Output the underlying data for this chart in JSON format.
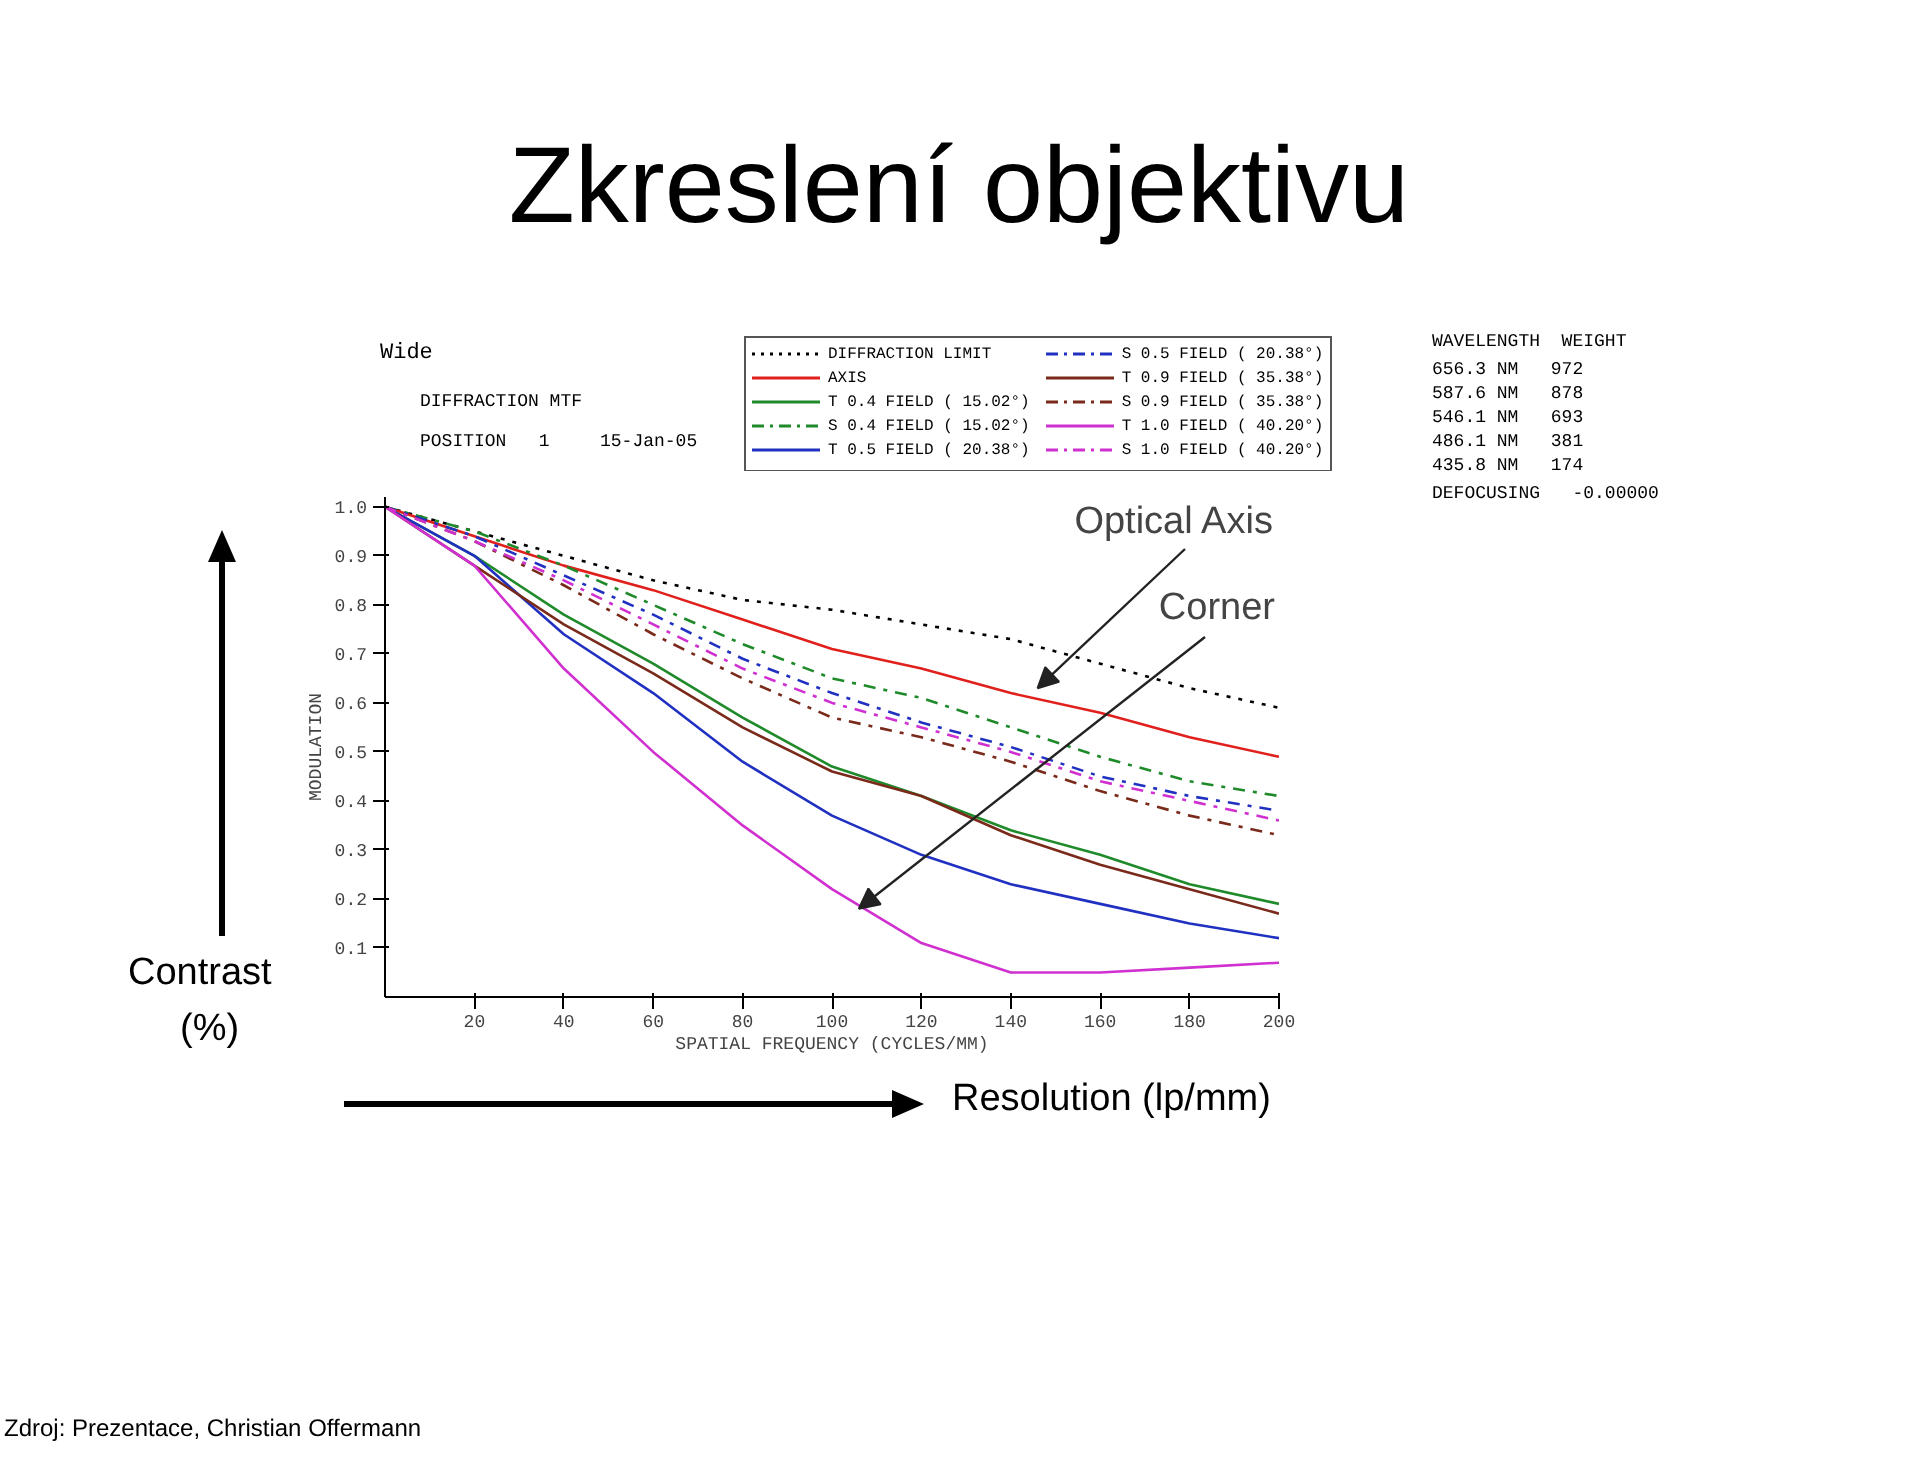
{
  "chart_data": {
    "type": "line",
    "title": "Zkreslení objektivu",
    "xlabel": "SPATIAL FREQUENCY (CYCLES/MM)",
    "ylabel": "MODULATION",
    "x": [
      0,
      20,
      40,
      60,
      80,
      100,
      120,
      140,
      160,
      180,
      200
    ],
    "xlim": [
      0,
      200
    ],
    "xticks": [
      20,
      40,
      60,
      80,
      100,
      120,
      140,
      160,
      180,
      200
    ],
    "ylim": [
      0,
      1.02
    ],
    "yticks": [
      0.1,
      0.2,
      0.3,
      0.4,
      0.5,
      0.6,
      0.7,
      0.8,
      0.9,
      {
        "value": 1,
        "label": "1.0"
      }
    ],
    "grid": false,
    "legend": "top",
    "marker": "none",
    "series": [
      {
        "name": "DIFFRACTION LIMIT",
        "color": "#000000",
        "line_style": "dotted",
        "values": [
          1.0,
          0.95,
          0.9,
          0.85,
          0.81,
          0.79,
          0.76,
          0.73,
          0.68,
          0.63,
          0.59
        ]
      },
      {
        "name": "AXIS",
        "color": "#e0201c",
        "line_style": "solid",
        "values": [
          1.0,
          0.94,
          0.88,
          0.83,
          0.77,
          0.71,
          0.67,
          0.62,
          0.58,
          0.53,
          0.49
        ]
      },
      {
        "name": "T 0.4 FIELD ( 15.02°)",
        "color": "#1f8a2a",
        "line_style": "solid",
        "values": [
          1.0,
          0.9,
          0.78,
          0.68,
          0.57,
          0.47,
          0.41,
          0.34,
          0.29,
          0.23,
          0.19
        ]
      },
      {
        "name": "S 0.4 FIELD ( 15.02°)",
        "color": "#1f8a2a",
        "line_style": "dashdot",
        "values": [
          1.0,
          0.95,
          0.88,
          0.8,
          0.72,
          0.65,
          0.61,
          0.55,
          0.49,
          0.44,
          0.41
        ]
      },
      {
        "name": "T 0.5 FIELD ( 20.38°)",
        "color": "#2030c0",
        "line_style": "solid",
        "values": [
          1.0,
          0.9,
          0.74,
          0.62,
          0.48,
          0.37,
          0.29,
          0.23,
          0.19,
          0.15,
          0.12
        ]
      },
      {
        "name": "S 0.5 FIELD ( 20.38°)",
        "color": "#2030c0",
        "line_style": "dashdot",
        "values": [
          1.0,
          0.94,
          0.86,
          0.78,
          0.69,
          0.62,
          0.56,
          0.51,
          0.45,
          0.41,
          0.38
        ]
      },
      {
        "name": "T 0.9 FIELD ( 35.38°)",
        "color": "#7a2a1a",
        "line_style": "solid",
        "values": [
          1.0,
          0.88,
          0.76,
          0.66,
          0.55,
          0.46,
          0.41,
          0.33,
          0.27,
          0.22,
          0.17
        ]
      },
      {
        "name": "S 0.9 FIELD ( 35.38°)",
        "color": "#7a2a1a",
        "line_style": "dashdot",
        "values": [
          1.0,
          0.93,
          0.84,
          0.74,
          0.65,
          0.57,
          0.53,
          0.48,
          0.42,
          0.37,
          0.33
        ]
      },
      {
        "name": "T 1.0 FIELD ( 40.20°)",
        "color": "#d030d0",
        "line_style": "solid",
        "values": [
          1.0,
          0.88,
          0.67,
          0.5,
          0.35,
          0.22,
          0.11,
          0.05,
          0.05,
          0.06,
          0.07
        ]
      },
      {
        "name": "S 1.0 FIELD ( 40.20°)",
        "color": "#d030d0",
        "line_style": "dashdot",
        "values": [
          1.0,
          0.93,
          0.85,
          0.76,
          0.67,
          0.6,
          0.55,
          0.5,
          0.44,
          0.4,
          0.36
        ]
      }
    ],
    "annotations": [
      "Wide",
      "DIFFRACTION MTF",
      "POSITION   1",
      "15-Jan-05",
      "WAVELENGTH  WEIGHT",
      "656.3 NM   972",
      "587.6 NM   878",
      "546.1 NM   693",
      "486.1 NM   381",
      "435.8 NM   174",
      "DEFOCUSING   -0.00000",
      {
        "text": "Optical Axis",
        "x": 146,
        "y": 0.63
      },
      {
        "text": "Corner",
        "x": 106,
        "y": 0.18
      },
      "Contrast",
      "(%)",
      "Resolution (lp/mm)",
      "Zdroj: Prezentace, Christian Offermann"
    ]
  }
}
